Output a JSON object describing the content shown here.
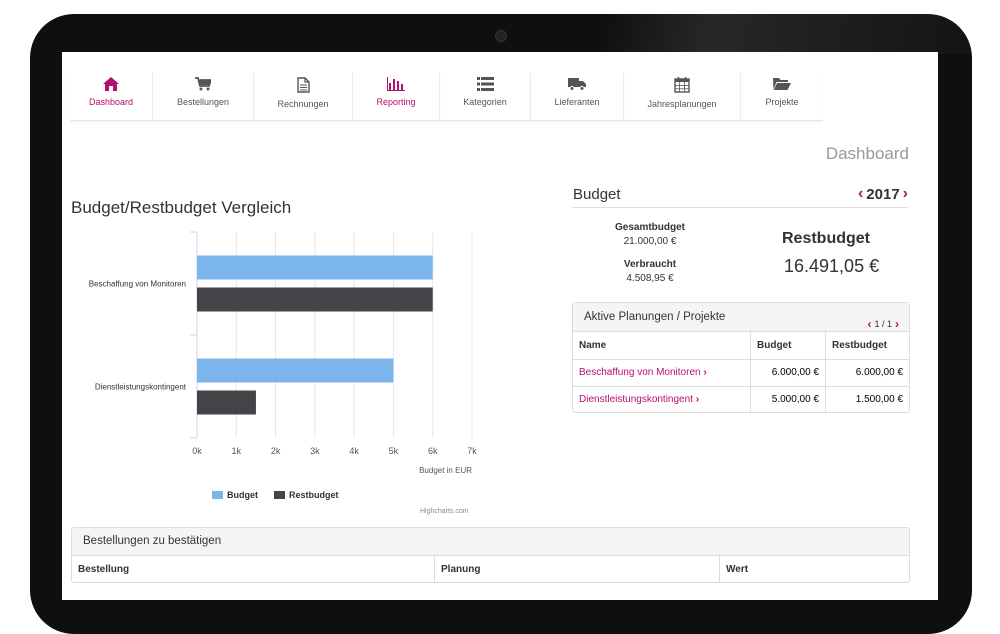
{
  "nav": [
    {
      "label": "Dashboard",
      "icon": "home-icon",
      "active": true
    },
    {
      "label": "Bestellungen",
      "icon": "cart-icon",
      "active": false
    },
    {
      "label": "Rechnungen",
      "icon": "file-icon",
      "active": false
    },
    {
      "label": "Reporting",
      "icon": "bar-chart-icon",
      "active": true
    },
    {
      "label": "Kategorien",
      "icon": "list-icon",
      "active": false
    },
    {
      "label": "Lieferanten",
      "icon": "truck-icon",
      "active": false
    },
    {
      "label": "Jahresplanungen",
      "icon": "calendar-icon",
      "active": false
    },
    {
      "label": "Projekte",
      "icon": "folder-open-icon",
      "active": false
    }
  ],
  "page": {
    "title": "Dashboard"
  },
  "chart_section": {
    "title": "Budget/Restbudget Vergleich",
    "credits": "Highcharts.com"
  },
  "chart_data": {
    "type": "bar",
    "orientation": "horizontal",
    "categories": [
      "Beschaffung von Monitoren",
      "Dienstleistungskontingent"
    ],
    "series": [
      {
        "name": "Budget",
        "values": [
          6000,
          5000
        ],
        "color": "#7cb5ec"
      },
      {
        "name": "Restbudget",
        "values": [
          6000,
          1500
        ],
        "color": "#434348"
      }
    ],
    "xlabel": "Budget in EUR",
    "xlim": [
      0,
      7000
    ],
    "ticks": [
      0,
      1000,
      2000,
      3000,
      4000,
      5000,
      6000,
      7000
    ],
    "tick_labels": [
      "0k",
      "1k",
      "2k",
      "3k",
      "4k",
      "5k",
      "6k",
      "7k"
    ],
    "grid": true,
    "legend": "bottom"
  },
  "budget": {
    "title": "Budget",
    "year": "2017",
    "gesamt_label": "Gesamtbudget",
    "gesamt_value": "21.000,00 €",
    "verbraucht_label": "Verbraucht",
    "verbraucht_value": "4.508,95 €",
    "rest_label": "Restbudget",
    "rest_value": "16.491,05 €"
  },
  "planungen": {
    "title": "Aktive Planungen / Projekte",
    "pager": "1 / 1",
    "columns": [
      "Name",
      "Budget",
      "Restbudget"
    ],
    "rows": [
      {
        "name": "Beschaffung von Monitoren",
        "budget": "6.000,00 €",
        "rest": "6.000,00 €"
      },
      {
        "name": "Dienstleistungskontingent",
        "budget": "5.000,00 €",
        "rest": "1.500,00 €"
      }
    ]
  },
  "bestellungen": {
    "title": "Bestellungen zu bestätigen",
    "columns": [
      "Bestellung",
      "Planung",
      "Wert"
    ]
  },
  "colors": {
    "accent": "#b4106f",
    "budget": "#7cb5ec",
    "restbudget": "#434348"
  }
}
